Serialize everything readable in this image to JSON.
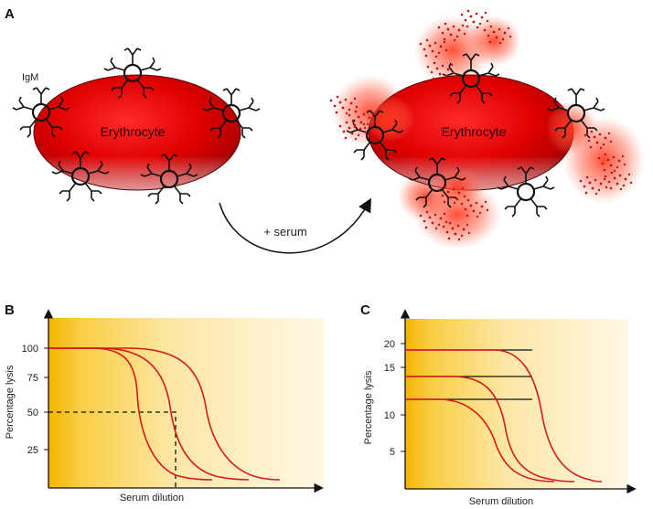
{
  "panels": {
    "a": {
      "letter": "A",
      "igm_label": "IgM",
      "cell_left_label": "Erythrocyte",
      "cell_right_label": "Erythrocyte",
      "arrow_label": "+ serum"
    },
    "b": {
      "letter": "B",
      "ylabel": "Percentage lysis",
      "xlabel": "Serum dilution",
      "yticks": [
        "100",
        "75",
        "50",
        "25"
      ]
    },
    "c": {
      "letter": "C",
      "ylabel": "Percentage lysis",
      "xlabel": "Serum dilution",
      "yticks": [
        "20",
        "15",
        "10",
        "5"
      ]
    }
  },
  "colors": {
    "cell_red": "#e00000",
    "lysis_red": "#ff3a20",
    "curve_red": "#d61a1a",
    "gradient_dark": "#f5b800",
    "gradient_light": "#fff6dc"
  },
  "icons": [
    "erythrocyte-cell",
    "igm-pentamer-icon",
    "lysis-cloud-icon",
    "curved-arrow-icon"
  ],
  "chart_data": [
    {
      "type": "line",
      "panel": "B",
      "title": "",
      "xlabel": "Serum dilution",
      "ylabel": "Percentage lysis",
      "yticks": [
        100,
        75,
        50,
        25
      ],
      "ylim": [
        0,
        120
      ],
      "grid": false,
      "series": [
        {
          "x": [
            0,
            1,
            2,
            3,
            4,
            5,
            6
          ],
          "y": [
            100,
            100,
            90,
            20,
            5,
            2,
            1
          ]
        },
        {
          "x": [
            0,
            1,
            2,
            3,
            4,
            5,
            6
          ],
          "y": [
            100,
            100,
            97,
            60,
            15,
            3,
            2
          ]
        },
        {
          "x": [
            0,
            1,
            2,
            3,
            4,
            5,
            6
          ],
          "y": [
            100,
            100,
            100,
            90,
            40,
            8,
            2
          ]
        }
      ],
      "reference": {
        "y": 50,
        "x": 4.5
      }
    },
    {
      "type": "line",
      "panel": "C",
      "title": "",
      "xlabel": "Serum dilution",
      "ylabel": "Percentage lysis",
      "yticks": [
        20,
        15,
        10,
        5
      ],
      "ylim": [
        0,
        23
      ],
      "grid": false,
      "plateaus": [
        19,
        15.3,
        12.2
      ],
      "series": [
        {
          "x": [
            0,
            1,
            2,
            3,
            4,
            5
          ],
          "y": [
            12.2,
            12,
            9,
            4,
            0.8,
            0.5
          ]
        },
        {
          "x": [
            0,
            1,
            2,
            3,
            4,
            5
          ],
          "y": [
            15.3,
            15,
            12,
            5,
            1.5,
            0.5
          ]
        },
        {
          "x": [
            0,
            1,
            2,
            3,
            4,
            5
          ],
          "y": [
            19,
            19,
            16,
            8,
            2,
            0.5
          ]
        }
      ]
    }
  ]
}
